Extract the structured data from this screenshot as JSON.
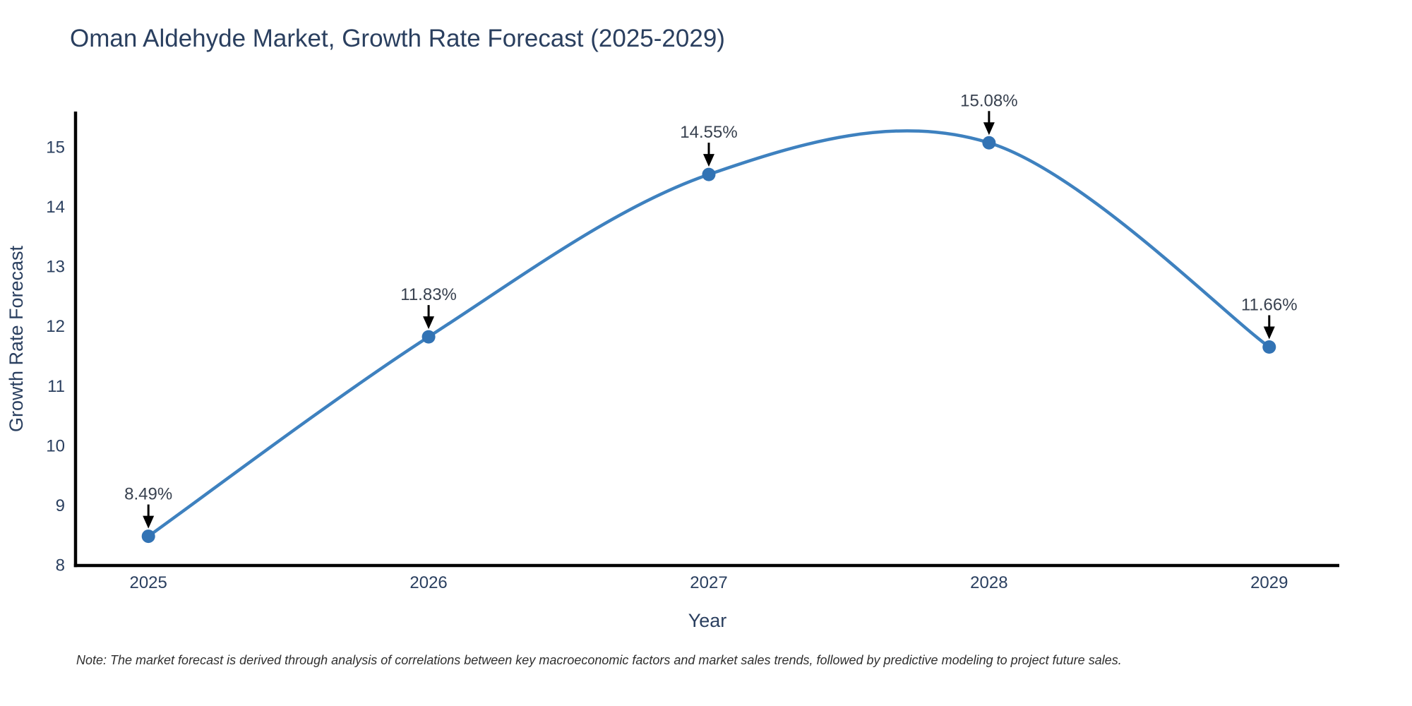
{
  "chart_data": {
    "type": "line",
    "title": "Oman Aldehyde Market, Growth Rate Forecast (2025-2029)",
    "xlabel": "Year",
    "ylabel": "Growth Rate Forecast",
    "x": [
      2025,
      2026,
      2027,
      2028,
      2029
    ],
    "values": [
      8.49,
      11.83,
      14.55,
      15.08,
      11.66
    ],
    "point_labels": [
      "8.49%",
      "11.83%",
      "14.55%",
      "15.08%",
      "11.66%"
    ],
    "x_tick_labels": [
      "2025",
      "2026",
      "2027",
      "2028",
      "2029"
    ],
    "y_ticks": [
      8,
      9,
      10,
      11,
      12,
      13,
      14,
      15
    ],
    "xlim": [
      2024.74,
      2029.25
    ],
    "ylim": [
      8,
      15.58
    ],
    "grid": false,
    "legend_position": "none",
    "line_shape": "spline",
    "colors": {
      "line": "#3e81bf",
      "marker": "#3273b4",
      "axis": "#000000",
      "title_text": "#2a3f5f",
      "tick_text": "#2a3f5f",
      "annotation_text": "#38414f",
      "arrow": "#000000",
      "background": "#ffffff",
      "note_text": "#2f2f2f"
    },
    "note": "Note: The market forecast is derived through analysis of correlations between key macroeconomic factors and market sales trends, followed by predictive modeling to project future sales."
  }
}
